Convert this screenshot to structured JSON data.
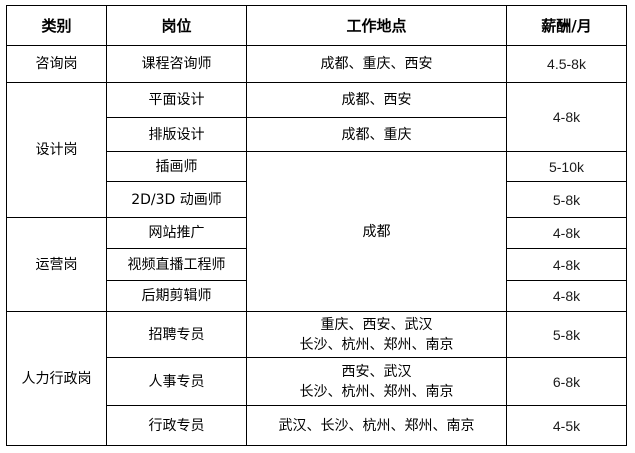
{
  "headers": {
    "category": "类别",
    "position": "岗位",
    "location": "工作地点",
    "salary": "薪酬/月"
  },
  "rows": [
    {
      "category": "咨询岗",
      "position": "课程咨询师",
      "location": "成都、重庆、西安",
      "salary": "4.5-8k"
    },
    {
      "category": "设计岗",
      "position": "平面设计",
      "location": "成都、西安",
      "salary": "4-8k"
    },
    {
      "position": "排版设计",
      "location": "成都、重庆"
    },
    {
      "position": "插画师",
      "location": "成都",
      "salary": "5-10k"
    },
    {
      "position": "2D/3D 动画师",
      "salary": "5-8k"
    },
    {
      "category": "运营岗",
      "position": "网站推广",
      "salary": "4-8k"
    },
    {
      "position": "视频直播工程师",
      "salary": "4-8k"
    },
    {
      "position": "后期剪辑师",
      "salary": "4-8k"
    },
    {
      "category": "人力行政岗",
      "position": "招聘专员",
      "location_line1": "重庆、西安、武汉",
      "location_line2": "长沙、杭州、郑州、南京",
      "salary": "5-8k"
    },
    {
      "position": "人事专员",
      "location_line1": "西安、武汉",
      "location_line2": "长沙、杭州、郑州、南京",
      "salary": "6-8k"
    },
    {
      "position": "行政专员",
      "location": "武汉、长沙、杭州、郑州、南京",
      "salary": "4-5k"
    }
  ]
}
